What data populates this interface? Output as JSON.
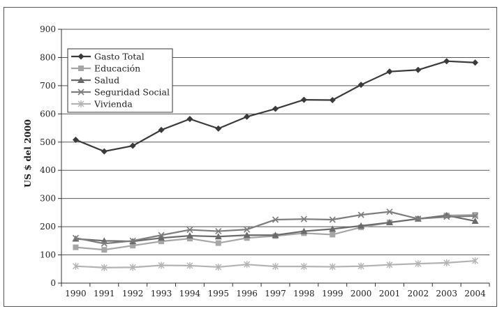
{
  "chart_data": {
    "type": "line",
    "title": "",
    "xlabel": "",
    "ylabel": "US $ del 2000",
    "ylim": [
      0,
      900
    ],
    "yticks": [
      0,
      100,
      200,
      300,
      400,
      500,
      600,
      700,
      800,
      900
    ],
    "grid": true,
    "legend_position": "top-left",
    "x": [
      "1990",
      "1991",
      "1992",
      "1993",
      "1994",
      "1995",
      "1996",
      "1997",
      "1998",
      "1999",
      "2000",
      "2001",
      "2002",
      "2003",
      "2004"
    ],
    "series": [
      {
        "name": "Gasto Total",
        "marker": "diamond",
        "color": "#3a3a3a",
        "values": [
          508,
          467,
          487,
          543,
          582,
          548,
          590,
          618,
          650,
          649,
          703,
          750,
          756,
          787,
          782
        ]
      },
      {
        "name": "Educación",
        "marker": "square",
        "color": "#a6a6a6",
        "values": [
          127,
          118,
          133,
          148,
          158,
          142,
          160,
          167,
          177,
          172,
          198,
          215,
          228,
          240,
          242
        ]
      },
      {
        "name": "Salud",
        "marker": "triangle",
        "color": "#6a6a6a",
        "values": [
          157,
          150,
          148,
          160,
          168,
          165,
          170,
          170,
          184,
          192,
          203,
          215,
          228,
          240,
          220
        ]
      },
      {
        "name": "Seguridad Social",
        "marker": "x",
        "color": "#7d7d7d",
        "values": [
          160,
          140,
          150,
          170,
          189,
          184,
          190,
          225,
          227,
          225,
          242,
          253,
          228,
          235,
          238
        ]
      },
      {
        "name": "Vivienda",
        "marker": "asterisk",
        "color": "#b3b3b3",
        "values": [
          60,
          55,
          56,
          63,
          62,
          57,
          66,
          59,
          59,
          58,
          60,
          65,
          69,
          72,
          79
        ]
      }
    ]
  }
}
